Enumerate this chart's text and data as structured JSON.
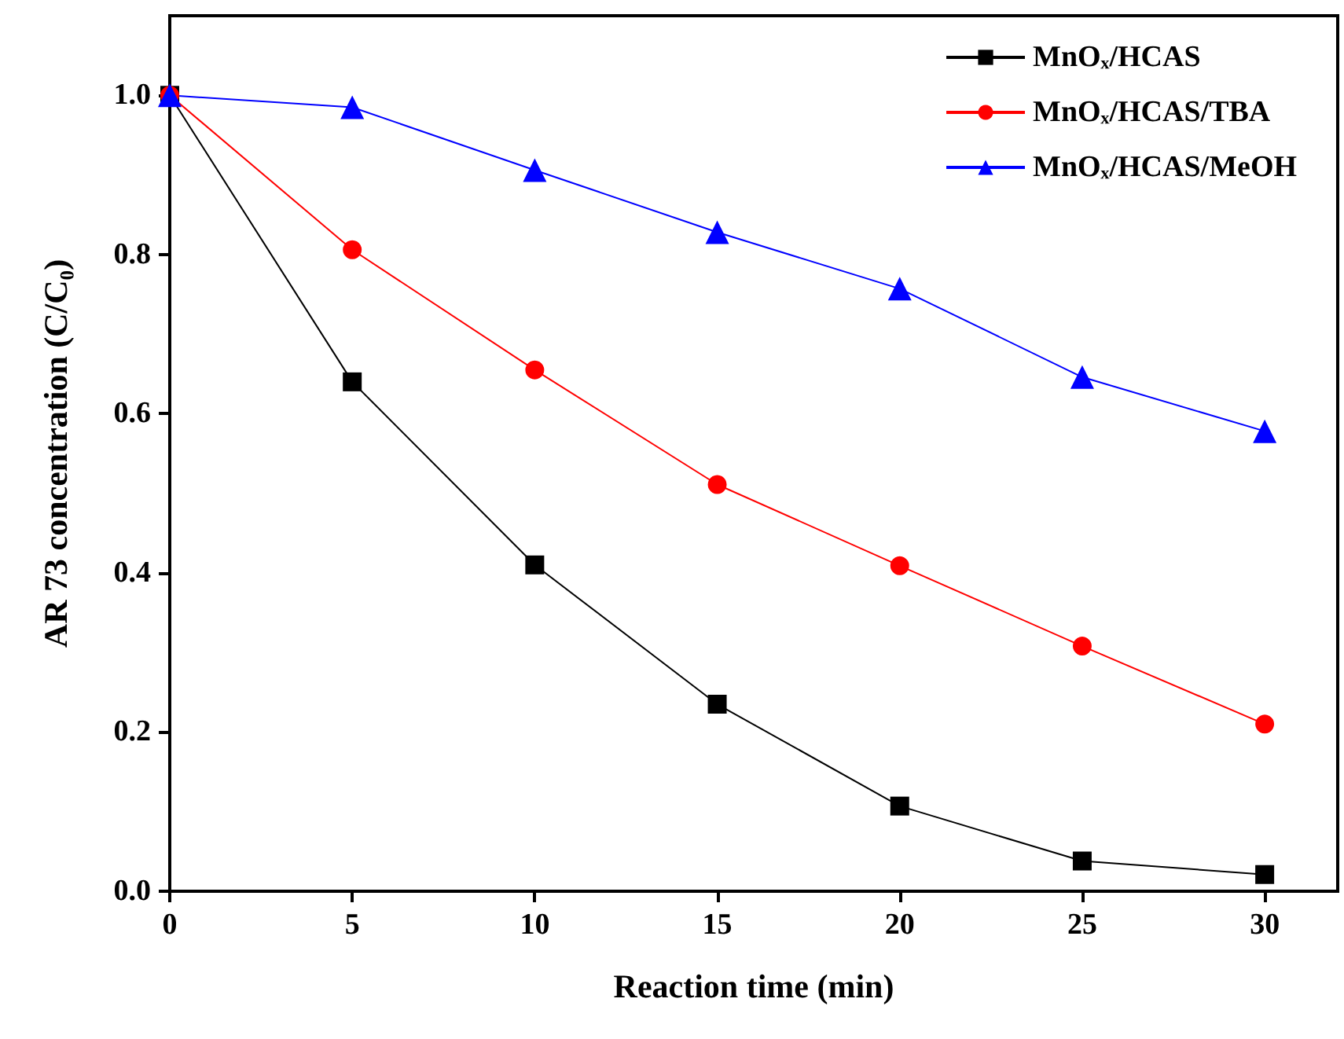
{
  "chart_data": {
    "type": "line",
    "xlabel": "Reaction time (min)",
    "ylabel": "AR 73 concentration (C/C₀)",
    "x": [
      0,
      5,
      10,
      15,
      20,
      25,
      30
    ],
    "series": [
      {
        "name": "MnOₓ/HCAS",
        "color": "#000000",
        "marker": "square",
        "values": [
          1.0,
          0.64,
          0.41,
          0.235,
          0.107,
          0.038,
          0.021
        ]
      },
      {
        "name": "MnOₓ/HCAS/TBA",
        "color": "#ff0000",
        "marker": "circle",
        "values": [
          1.0,
          0.806,
          0.655,
          0.511,
          0.409,
          0.308,
          0.21
        ]
      },
      {
        "name": "MnOₓ/HCAS/MeOH",
        "color": "#0000ff",
        "marker": "triangle",
        "values": [
          1.0,
          0.985,
          0.906,
          0.828,
          0.757,
          0.646,
          0.578
        ]
      }
    ],
    "xlim": [
      0,
      32
    ],
    "xticks": [
      0,
      5,
      10,
      15,
      20,
      25,
      30
    ],
    "ylim": [
      0,
      1.1
    ],
    "yticks": [
      {
        "value": 0,
        "label": "0.0"
      },
      0.2,
      0.4,
      0.6,
      0.8,
      {
        "value": 1,
        "label": "1.0"
      }
    ],
    "legend": "top right",
    "grid": false,
    "line_style": "solid"
  }
}
